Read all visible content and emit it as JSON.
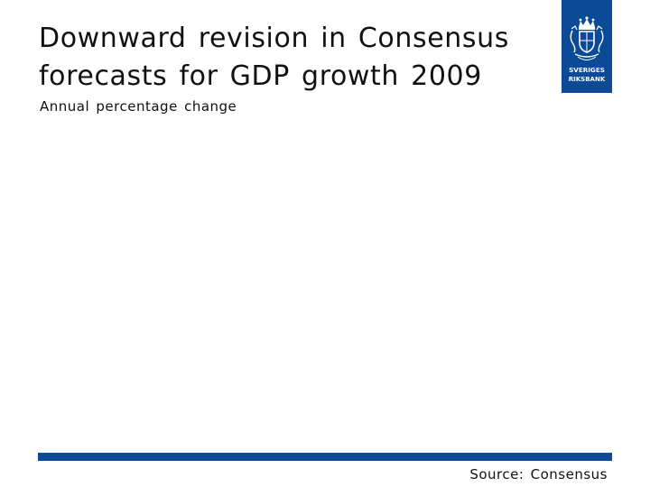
{
  "slide": {
    "title": "Downward revision in Consensus forecasts for GDP growth 2009",
    "subtitle": "Annual percentage change",
    "source": "Source: Consensus"
  },
  "logo": {
    "icon": "riksbank-crest-icon",
    "text_line1": "SVERIGES",
    "text_line2": "RIKSBANK"
  },
  "colors": {
    "brand_blue": "#0c4a97",
    "text": "#111111",
    "background": "#ffffff"
  }
}
